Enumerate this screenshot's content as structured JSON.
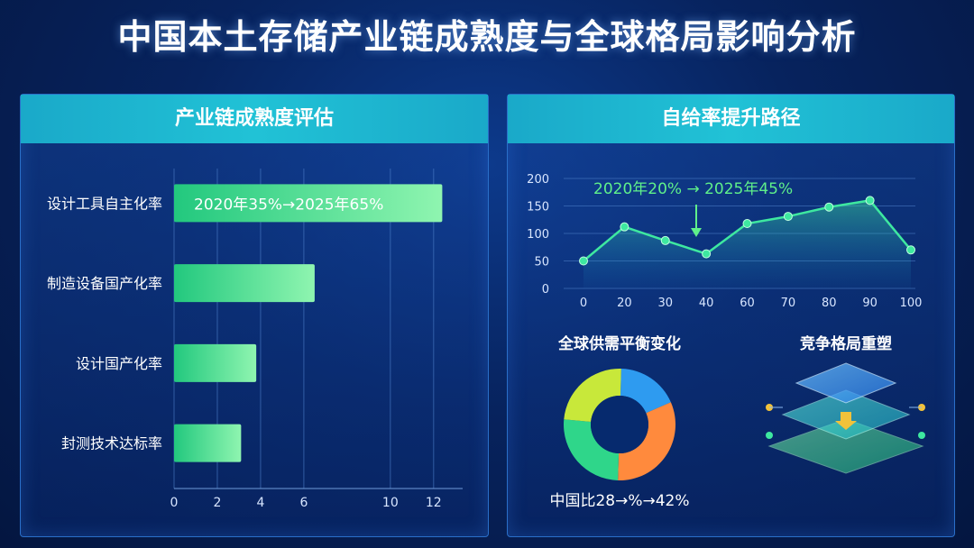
{
  "title": "中国本土存储产业链成熟度与全球格局影响分析",
  "left_panel": {
    "heading": "产业链成熟度评估"
  },
  "right_panel": {
    "heading": "自给率提升路径",
    "line_annotation": "2020年20% → 2025年45%",
    "donut_title": "全球供需平衡变化",
    "donut_caption": "中国比28→%→42%",
    "layers_title": "竞争格局重塑"
  },
  "colors": {
    "bar_start": "#2fd68a",
    "bar_end": "#7ff0a8",
    "line": "#3ee8a0",
    "donut": [
      "#2e9bf0",
      "#ff8a3d",
      "#2fd68a",
      "#c8e83a"
    ]
  },
  "chart_data": [
    {
      "type": "bar",
      "orientation": "horizontal",
      "categories": [
        "设计工具自主化率",
        "制造设备国产化率",
        "设计国产化率",
        "封测技术达标率"
      ],
      "values": [
        12.4,
        6.5,
        3.8,
        3.1
      ],
      "bar_labels": [
        "2020年35%→2025年65%",
        "",
        "",
        ""
      ],
      "xlim": [
        0,
        13
      ],
      "xticks": [
        0,
        2,
        4,
        6,
        10,
        12
      ],
      "grid": true
    },
    {
      "type": "line",
      "x": [
        "0",
        "20",
        "30",
        "40",
        "60",
        "70",
        "80",
        "90",
        "100"
      ],
      "y": [
        50,
        112,
        87,
        63,
        118,
        131,
        148,
        160,
        70
      ],
      "ylim": [
        0,
        200
      ],
      "yticks": [
        0,
        50,
        100,
        150,
        200
      ],
      "grid": true
    },
    {
      "type": "pie",
      "style": "donut",
      "values": [
        18,
        32,
        26,
        24
      ]
    }
  ]
}
